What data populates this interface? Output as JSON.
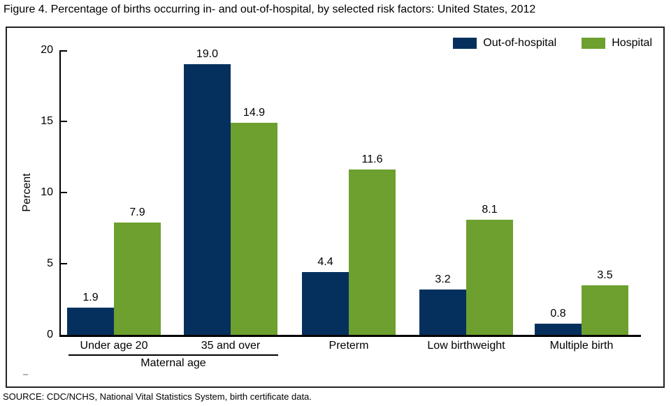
{
  "title": "Figure 4. Percentage of births occurring in- and out-of-hospital, by selected risk factors: United States, 2012",
  "source": "SOURCE: CDC/NCHS, National Vital Statistics System, birth certificate data.",
  "colors": {
    "out_of_hospital": "#05305e",
    "hospital": "#6da02e",
    "axis": "#000000"
  },
  "chart_data": {
    "type": "bar",
    "categories": [
      "Under age 20",
      "35 and over",
      "Preterm",
      "Low birthweight",
      "Multiple birth"
    ],
    "series": [
      {
        "name": "Out-of-hospital",
        "color": "#05305e",
        "values": [
          1.9,
          19.0,
          4.4,
          3.2,
          0.8
        ]
      },
      {
        "name": "Hospital",
        "color": "#6da02e",
        "values": [
          7.9,
          14.9,
          11.6,
          8.1,
          3.5
        ]
      }
    ],
    "title": "",
    "xlabel": "",
    "ylabel": "Percent",
    "yticks": [
      0,
      5,
      10,
      15,
      20
    ],
    "ylim": [
      0,
      20
    ],
    "grid": false,
    "legend_position": "top-right",
    "value_labels": true,
    "value_label_decimals": 1,
    "category_group": {
      "label": "Maternal age",
      "applies_to": [
        "Under age 20",
        "35 and over"
      ]
    }
  }
}
